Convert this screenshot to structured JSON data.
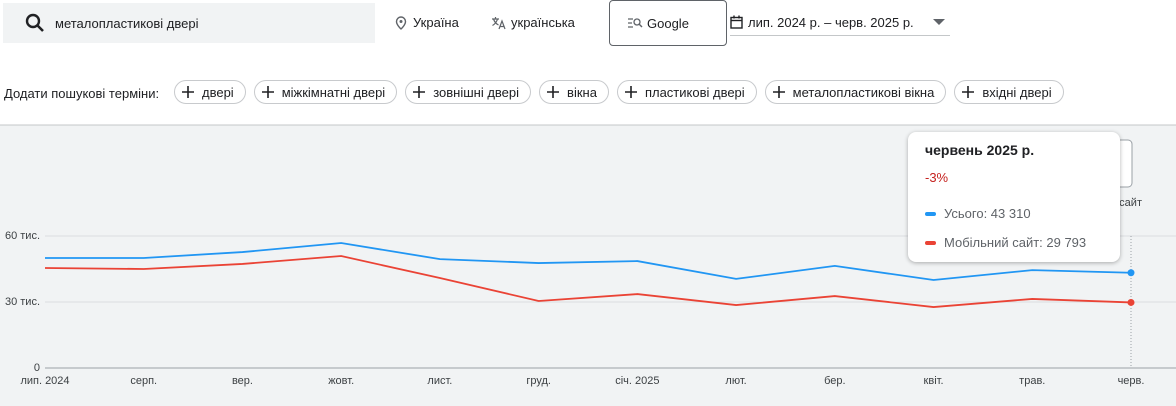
{
  "search": {
    "query": "металопластикові двері",
    "location": "Україна",
    "language": "українська",
    "network": "Google",
    "date_range": "лип. 2024 р. – черв. 2025 р."
  },
  "refine": {
    "label": "Додати пошукові терміни:",
    "chips": [
      "двері",
      "міжкімнатні двері",
      "зовнішні двері",
      "вікна",
      "пластикові двері",
      "металопластикові вікна",
      "вхідні двері"
    ]
  },
  "chart_data": {
    "type": "line",
    "categories": [
      "лип. 2024",
      "серп.",
      "вер.",
      "жовт.",
      "лист.",
      "груд.",
      "січ. 2025",
      "лют.",
      "бер.",
      "квіт.",
      "трав.",
      "черв."
    ],
    "series": [
      {
        "name": "Усього",
        "color": "#2196f3",
        "values": [
          50000,
          50000,
          52700,
          56800,
          49500,
          47700,
          48600,
          40500,
          46400,
          40000,
          44500,
          43310
        ]
      },
      {
        "name": "Мобільний сайт",
        "color": "#ea4335",
        "values": [
          45450,
          45000,
          47300,
          50900,
          40900,
          30450,
          33600,
          28600,
          32700,
          27700,
          31400,
          29793
        ]
      }
    ],
    "ylim": [
      0,
      90000
    ],
    "yticks": [
      0,
      {
        "value": 30000,
        "label": "30 тис."
      },
      {
        "value": 60000,
        "label": "60 тис."
      }
    ],
    "grid": true,
    "tooltip": {
      "title": "червень 2025 р.",
      "change": "-3%",
      "rows": [
        "Усього: 43 310",
        "Мобільний сайт: 29 793"
      ]
    }
  }
}
